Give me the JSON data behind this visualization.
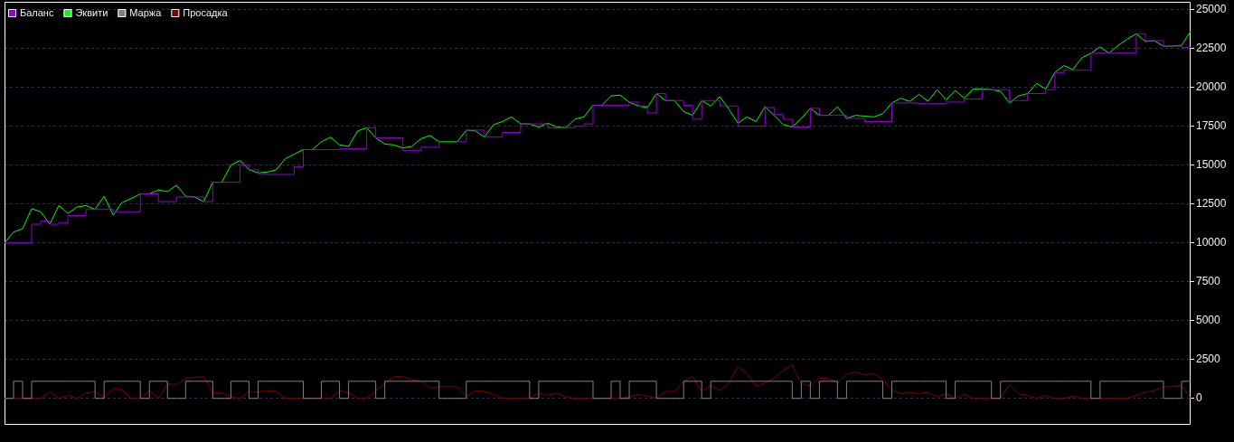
{
  "chart_data": {
    "type": "line",
    "tick_labels": "y",
    "grid": "y",
    "legend": "top left",
    "ylim": [
      -1700,
      25500
    ],
    "yticks": [
      0,
      2500,
      5000,
      7500,
      10000,
      12500,
      15000,
      17500,
      20000,
      22500,
      25000
    ],
    "categories": [
      null,
      null,
      null,
      null,
      null,
      null,
      null,
      null,
      null,
      null,
      null,
      null,
      null,
      null,
      null,
      null,
      null,
      null,
      null,
      null,
      null,
      null,
      null,
      null,
      null,
      null,
      null,
      null,
      null,
      null,
      null,
      null,
      null,
      null,
      null,
      null,
      null,
      null,
      null,
      null,
      null,
      null,
      null,
      null,
      null,
      null,
      null,
      null,
      null,
      null,
      null,
      null,
      null,
      null,
      null,
      null,
      null,
      null,
      null,
      null,
      null,
      null,
      null,
      null,
      null,
      null,
      null,
      null,
      null,
      null,
      null,
      null,
      null,
      null,
      null,
      null,
      null,
      null,
      null,
      null,
      null,
      null,
      null,
      null,
      null,
      null,
      null,
      null,
      null,
      null,
      null,
      null,
      null,
      null,
      null,
      null,
      null,
      null,
      null,
      null,
      null,
      null,
      null,
      null,
      null,
      null,
      null,
      null,
      null,
      null,
      null,
      null,
      null,
      null,
      null,
      null,
      null,
      null,
      null,
      null,
      null,
      null,
      null,
      null,
      null,
      null,
      null,
      null,
      null,
      null,
      null,
      null
    ],
    "series": [
      {
        "name": "Баланс",
        "type": "step",
        "color": "#9400d3",
        "values": [
          10000,
          10000,
          10000,
          11200,
          11400,
          11200,
          11300,
          11750,
          11750,
          12150,
          12150,
          12150,
          12000,
          12000,
          12000,
          13150,
          13150,
          12650,
          12650,
          12950,
          12950,
          12950,
          12650,
          13900,
          13900,
          13900,
          15000,
          14700,
          14450,
          14400,
          14400,
          14400,
          14900,
          16000,
          16000,
          16000,
          16000,
          16050,
          16050,
          16050,
          17400,
          16750,
          16750,
          16750,
          15950,
          15950,
          16150,
          16150,
          16500,
          null,
          16500,
          17250,
          17250,
          16800,
          16800,
          17100,
          17100,
          17650,
          17650,
          17650,
          17400,
          17400,
          17400,
          17500,
          17650,
          18850,
          18850,
          18850,
          18850,
          19050,
          18800,
          18350,
          19600,
          19150,
          19150,
          18850,
          17950,
          19150,
          19150,
          18800,
          18800,
          17500,
          17500,
          17500,
          18700,
          18250,
          17950,
          17450,
          17450,
          18650,
          18200,
          18200,
          18200,
          18000,
          18000,
          17800,
          17800,
          17800,
          19000,
          19000,
          19000,
          18950,
          18950,
          18950,
          19050,
          19050,
          19250,
          19250,
          19850,
          19850,
          19850,
          19150,
          19150,
          19600,
          19600,
          19850,
          20950,
          21100,
          21100,
          21100,
          22200,
          22200,
          22200,
          22200,
          22200,
          23450,
          23000,
          23000,
          22650,
          22650,
          22550,
          22550
        ]
      },
      {
        "name": "Эквити",
        "type": "line",
        "color": "#00ff00",
        "values": [
          10000,
          10700,
          10900,
          12200,
          12000,
          11200,
          12400,
          11900,
          12300,
          12400,
          12150,
          13000,
          11800,
          12600,
          12850,
          13150,
          13150,
          13400,
          13300,
          13700,
          13000,
          12950,
          12650,
          13900,
          13900,
          15000,
          15300,
          14700,
          14500,
          14550,
          14700,
          15400,
          15700,
          16000,
          16000,
          16500,
          16800,
          16300,
          16200,
          17200,
          17400,
          16750,
          16350,
          16300,
          16100,
          16200,
          16700,
          16900,
          16500,
          16500,
          16500,
          17250,
          17200,
          16800,
          17600,
          17800,
          18100,
          17650,
          17650,
          17450,
          17700,
          17450,
          17400,
          17950,
          18100,
          18850,
          18850,
          19450,
          19500,
          19050,
          18800,
          18700,
          19600,
          19150,
          19150,
          18450,
          18200,
          19150,
          18800,
          19400,
          18600,
          17700,
          18100,
          17800,
          18750,
          18200,
          17600,
          17450,
          18000,
          18650,
          18200,
          18200,
          18750,
          18000,
          18200,
          18150,
          18100,
          18300,
          19000,
          19300,
          19100,
          19550,
          19100,
          19850,
          19200,
          19800,
          19300,
          19900,
          19900,
          19850,
          19750,
          19000,
          19450,
          19600,
          20250,
          19900,
          20950,
          21400,
          21150,
          21900,
          22200,
          22600,
          22200,
          22700,
          23100,
          23450,
          22950,
          23000,
          22650,
          22650,
          22700,
          23600
        ]
      },
      {
        "name": "Маржа",
        "type": "step",
        "color": "#808080",
        "values": [
          0,
          1100,
          0,
          1100,
          1100,
          1100,
          1100,
          1100,
          1100,
          1100,
          0,
          1100,
          1100,
          1100,
          1100,
          0,
          1100,
          1100,
          0,
          0,
          1100,
          1100,
          1100,
          0,
          0,
          1100,
          1100,
          0,
          1100,
          1100,
          1100,
          1100,
          1100,
          0,
          0,
          1100,
          1100,
          0,
          1100,
          1100,
          1100,
          0,
          1100,
          1100,
          1100,
          1100,
          1100,
          1100,
          0,
          0,
          0,
          1100,
          1100,
          1100,
          1100,
          1100,
          1100,
          1100,
          0,
          1100,
          1100,
          1100,
          1100,
          1100,
          1100,
          0,
          0,
          1100,
          0,
          1100,
          1100,
          1100,
          0,
          0,
          0,
          1100,
          1100,
          0,
          1100,
          1100,
          1100,
          1100,
          1100,
          1100,
          1100,
          1100,
          1100,
          0,
          1100,
          0,
          1100,
          1100,
          0,
          1100,
          1100,
          1100,
          1100,
          0,
          1100,
          1100,
          1100,
          1100,
          1100,
          1100,
          0,
          1100,
          1100,
          1100,
          1100,
          0,
          1100,
          1100,
          1100,
          1100,
          1100,
          1100,
          1100,
          1100,
          1100,
          1100,
          0,
          1100,
          1100,
          1100,
          1100,
          1100,
          1100,
          1100,
          0,
          0,
          1100,
          1100
        ]
      },
      {
        "name": "Просадка",
        "type": "line",
        "color": "#800000",
        "values": [
          0,
          0,
          0,
          0,
          0,
          450,
          0,
          200,
          0,
          350,
          450,
          0,
          650,
          550,
          0,
          0,
          500,
          0,
          950,
          850,
          1300,
          1350,
          1400,
          350,
          350,
          100,
          0,
          450,
          400,
          500,
          450,
          0,
          0,
          0,
          0,
          0,
          0,
          500,
          350,
          0,
          0,
          500,
          1000,
          1400,
          1400,
          1200,
          1100,
          650,
          750,
          750,
          750,
          100,
          500,
          450,
          250,
          0,
          0,
          0,
          0,
          350,
          200,
          350,
          100,
          0,
          0,
          0,
          0,
          0,
          0,
          100,
          250,
          150,
          0,
          450,
          450,
          1100,
          1400,
          450,
          850,
          500,
          1000,
          2050,
          1600,
          800,
          1000,
          1300,
          1800,
          2150,
          950,
          800,
          1300,
          1300,
          1000,
          1550,
          1700,
          1500,
          1600,
          1200,
          550,
          300,
          400,
          300,
          400,
          100,
          300,
          0,
          250,
          0,
          0,
          0,
          0,
          900,
          300,
          200,
          0,
          200,
          0,
          0,
          150,
          0,
          0,
          0,
          0,
          0,
          0,
          200,
          400,
          500,
          750,
          750,
          850,
          0
        ]
      }
    ]
  }
}
